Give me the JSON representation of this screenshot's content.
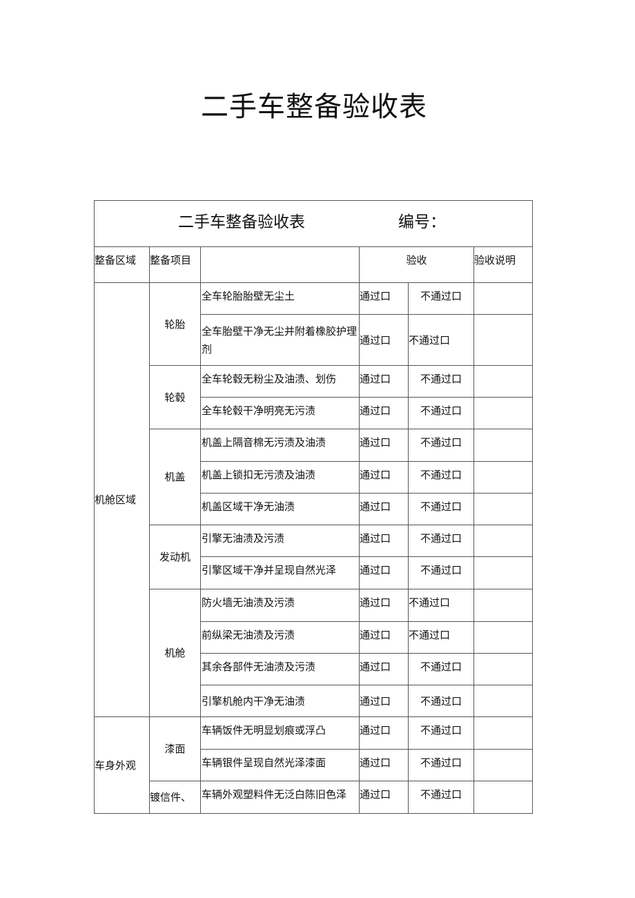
{
  "document": {
    "title": "二手车整备验收表"
  },
  "form": {
    "title": "二手车整备验收表",
    "number_label": "编号：",
    "headers": {
      "area": "整备区域",
      "item": "整备项目",
      "detail": "",
      "acceptance": "验收",
      "notes": "验收说明"
    },
    "pass_label": "通过口",
    "fail_label": "不通过口",
    "rows": [
      {
        "area": "机舱区域",
        "item": "轮胎",
        "detail": "全车轮胎胎壁无尘土",
        "note": ""
      },
      {
        "area": "机舱区域",
        "item": "轮胎",
        "detail": "全车胎壁干净无尘并附着橡胶护理剂",
        "note": ""
      },
      {
        "area": "机舱区域",
        "item": "轮毂",
        "detail": "全车轮毂无粉尘及油渍、划伤",
        "note": ""
      },
      {
        "area": "机舱区域",
        "item": "轮毂",
        "detail": "全车轮毂干净明亮无污渍",
        "note": ""
      },
      {
        "area": "机舱区域",
        "item": "机盖",
        "detail": "机盖上隔音棉无污渍及油渍",
        "note": ""
      },
      {
        "area": "机舱区域",
        "item": "机盖",
        "detail": "机盖上锁扣无污渍及油渍",
        "note": ""
      },
      {
        "area": "机舱区域",
        "item": "机盖",
        "detail": "机盖区域干净无油渍",
        "note": ""
      },
      {
        "area": "机舱区域",
        "item": "发动机",
        "detail": "引擎无油渍及污渍",
        "note": ""
      },
      {
        "area": "机舱区域",
        "item": "发动机",
        "detail": "引擎区域干净并呈现自然光泽",
        "note": ""
      },
      {
        "area": "机舱区域",
        "item": "机舱",
        "detail": "防火墙无油渍及污渍",
        "note": ""
      },
      {
        "area": "机舱区域",
        "item": "机舱",
        "detail": "前纵梁无油渍及污渍",
        "note": ""
      },
      {
        "area": "机舱区域",
        "item": "机舱",
        "detail": "其余各部件无油渍及污渍",
        "note": ""
      },
      {
        "area": "机舱区域",
        "item": "机舱",
        "detail": "引擎机舱内干净无油渍",
        "note": ""
      },
      {
        "area": "车身外观",
        "item": "漆面",
        "detail": "车辆饭件无明显划痕或浮凸",
        "note": ""
      },
      {
        "area": "车身外观",
        "item": "漆面",
        "detail": "车辆银件呈现自然光泽漆面",
        "note": ""
      },
      {
        "area": "车身外观",
        "item": "镀信件、",
        "detail": "车辆外观塑料件无泛白陈旧色泽",
        "note": ""
      }
    ]
  }
}
